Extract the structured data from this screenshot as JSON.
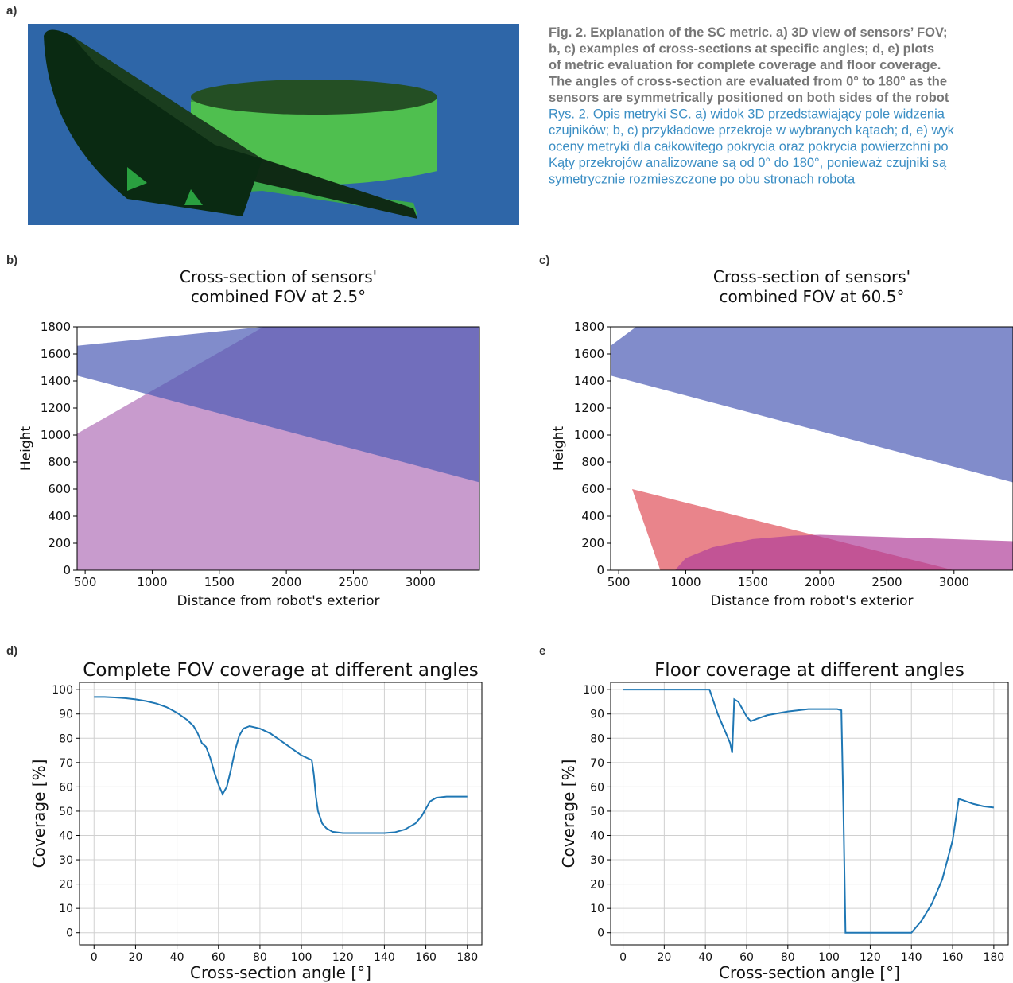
{
  "panel_labels": [
    "a)",
    "b)",
    "c)",
    "d)",
    "e"
  ],
  "caption": {
    "english": [
      "Fig. 2. Explanation of the SC metric. a) 3D view of sensors’ FOV;",
      "b, c) examples of cross-sections at specific angles; d, e) plots",
      "of metric evaluation for complete coverage and floor coverage.",
      "The angles of cross-section are evaluated from 0° to 180° as the",
      "sensors are symmetrically positioned on both sides of the robot"
    ],
    "polish": [
      "Rys. 2. Opis metryki SC. a) widok 3D przedstawiający pole widzenia",
      "czujników; b, c) przykładowe przekroje w wybranych kątach; d, e) wyk",
      "oceny metryki dla całkowitego pokrycia oraz pokrycia powierzchni po",
      "Kąty przekrojów analizowane są od 0° do 180°, ponieważ czujniki są",
      "symetrycznie rozmieszczone po obu stronach robota"
    ]
  },
  "chart_data": [
    {
      "type": "area",
      "title": [
        "Cross-section of sensors'",
        "combined FOV at 2.5°"
      ],
      "xlabel": "Distance from robot's exterior",
      "ylabel": "Height",
      "xlim": [
        440,
        3440
      ],
      "ylim": [
        0,
        1800
      ],
      "xticks": [
        500,
        1000,
        1500,
        2000,
        2500,
        3000
      ],
      "yticks": [
        0,
        200,
        400,
        600,
        800,
        1000,
        1200,
        1400,
        1600,
        1800
      ],
      "grid": false,
      "series": [
        {
          "color": "#b070b8",
          "x": [
            440,
            440,
            1830,
            3440,
            3440
          ],
          "values": [
            0,
            1010,
            1800,
            1800,
            0
          ]
        },
        {
          "color": "#4b5bb5",
          "x": [
            440,
            440,
            1830,
            3440,
            3440
          ],
          "values": [
            1440,
            1660,
            1800,
            1800,
            650
          ]
        }
      ]
    },
    {
      "type": "area",
      "title": [
        "Cross-section of sensors'",
        "combined FOV at 60.5°"
      ],
      "xlabel": "Distance from robot's exterior",
      "ylabel": "Height",
      "xlim": [
        440,
        3440
      ],
      "ylim": [
        0,
        1800
      ],
      "xticks": [
        500,
        1000,
        1500,
        2000,
        2500,
        3000
      ],
      "yticks": [
        0,
        200,
        400,
        600,
        800,
        1000,
        1200,
        1400,
        1600,
        1800
      ],
      "grid": false,
      "series": [
        {
          "color": "#4b5bb5",
          "x": [
            440,
            440,
            630,
            3440,
            3440
          ],
          "values": [
            1440,
            1660,
            1800,
            1800,
            650
          ]
        },
        {
          "color": "#e0505a",
          "x": [
            600,
            810,
            3000
          ],
          "values": [
            600,
            0,
            0
          ]
        },
        {
          "color": "#b0409a",
          "x": [
            920,
            1000,
            1200,
            1500,
            1800,
            2000,
            3440,
            3440
          ],
          "values": [
            0,
            90,
            170,
            230,
            255,
            262,
            215,
            0
          ]
        }
      ]
    },
    {
      "type": "line",
      "title": "Complete FOV coverage at different angles",
      "xlabel": "Cross-section angle [°]",
      "ylabel": "Coverage [%]",
      "xlim": [
        -7,
        187
      ],
      "ylim": [
        -5,
        103
      ],
      "xticks": [
        0,
        20,
        40,
        60,
        80,
        100,
        120,
        140,
        160,
        180
      ],
      "yticks": [
        0,
        10,
        20,
        30,
        40,
        50,
        60,
        70,
        80,
        90,
        100
      ],
      "grid": true,
      "series": [
        {
          "color": "#1f77b4",
          "x": [
            0,
            5,
            10,
            15,
            20,
            25,
            30,
            35,
            40,
            45,
            48,
            50,
            52,
            54,
            56,
            58,
            60,
            62,
            64,
            66,
            68,
            70,
            72,
            75,
            80,
            85,
            90,
            95,
            100,
            105,
            106,
            107,
            108,
            110,
            112,
            115,
            120,
            130,
            140,
            145,
            150,
            155,
            158,
            160,
            162,
            165,
            170,
            175,
            180
          ],
          "values": [
            97,
            97,
            96.8,
            96.5,
            96,
            95.3,
            94.3,
            92.8,
            90.5,
            87.5,
            85,
            82,
            78,
            76.5,
            72,
            66,
            61,
            57,
            60,
            67,
            75,
            81,
            84,
            85,
            84,
            82,
            79,
            76,
            73,
            71,
            65,
            56,
            50,
            45,
            43,
            41.5,
            41,
            41,
            41,
            41.3,
            42.5,
            45,
            48,
            51,
            54,
            55.5,
            56,
            56,
            56
          ]
        }
      ]
    },
    {
      "type": "line",
      "title": "Floor coverage at different angles",
      "xlabel": "Cross-section angle [°]",
      "ylabel": "Coverage [%]",
      "xlim": [
        -6,
        187
      ],
      "ylim": [
        -5,
        103
      ],
      "xticks": [
        0,
        20,
        40,
        60,
        80,
        100,
        120,
        140,
        160,
        180
      ],
      "yticks": [
        0,
        10,
        20,
        30,
        40,
        50,
        60,
        70,
        80,
        90,
        100
      ],
      "grid": true,
      "series": [
        {
          "color": "#1f77b4",
          "x": [
            0,
            10,
            20,
            30,
            40,
            42,
            44,
            46,
            48,
            50,
            52,
            53,
            54,
            56,
            58,
            60,
            62,
            65,
            70,
            80,
            90,
            100,
            104,
            106,
            107,
            108,
            110,
            120,
            130,
            138,
            140,
            145,
            150,
            155,
            160,
            163,
            165,
            170,
            175,
            180
          ],
          "values": [
            100,
            100,
            100,
            100,
            100,
            100,
            95,
            90,
            86,
            82,
            78,
            74,
            96,
            95,
            92,
            89,
            87,
            88,
            89.5,
            91,
            92,
            92,
            92,
            91.5,
            50,
            0,
            0,
            0,
            0,
            0,
            0,
            5,
            12,
            22,
            38,
            55,
            54.5,
            53,
            52,
            51.5
          ]
        }
      ]
    }
  ]
}
